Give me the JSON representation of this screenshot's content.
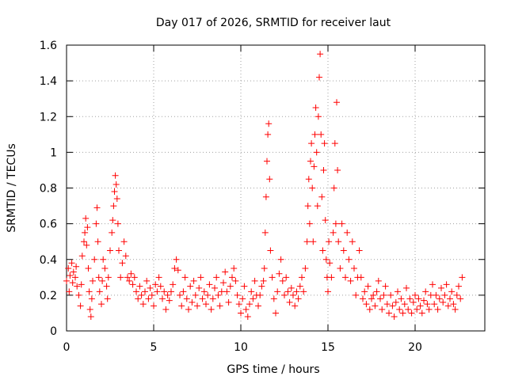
{
  "chart_data": {
    "type": "scatter",
    "title": "Day 017 of 2026, SRMTID for receiver laut",
    "xlabel": "GPS time / hours",
    "ylabel": "SRMTID / TECUs",
    "xlim": [
      0,
      24
    ],
    "ylim": [
      0,
      1.6
    ],
    "xticks": [
      0,
      5,
      10,
      15,
      20
    ],
    "xtick_labels": [
      "0",
      "5",
      "10",
      "15",
      "20"
    ],
    "yticks": [
      0,
      0.2,
      0.4,
      0.6,
      0.8,
      1,
      1.2,
      1.4,
      1.6
    ],
    "ytick_labels": [
      "0",
      "0.2",
      "0.4",
      "0.6",
      "0.8",
      "1",
      "1.2",
      "1.4",
      "1.6"
    ],
    "grid": true,
    "marker": "+",
    "color": "#ff0000",
    "series": [
      {
        "name": "SRMTID",
        "points": [
          [
            0.0,
            0.28
          ],
          [
            0.1,
            0.35
          ],
          [
            0.15,
            0.22
          ],
          [
            0.2,
            0.31
          ],
          [
            0.3,
            0.38
          ],
          [
            0.35,
            0.27
          ],
          [
            0.4,
            0.33
          ],
          [
            0.5,
            0.3
          ],
          [
            0.55,
            0.36
          ],
          [
            0.6,
            0.25
          ],
          [
            0.7,
            0.2
          ],
          [
            0.8,
            0.14
          ],
          [
            0.85,
            0.26
          ],
          [
            0.9,
            0.42
          ],
          [
            1.0,
            0.5
          ],
          [
            1.05,
            0.55
          ],
          [
            1.1,
            0.63
          ],
          [
            1.15,
            0.48
          ],
          [
            1.2,
            0.58
          ],
          [
            1.25,
            0.35
          ],
          [
            1.3,
            0.22
          ],
          [
            1.35,
            0.12
          ],
          [
            1.4,
            0.08
          ],
          [
            1.45,
            0.18
          ],
          [
            1.5,
            0.28
          ],
          [
            1.6,
            0.4
          ],
          [
            1.7,
            0.6
          ],
          [
            1.75,
            0.69
          ],
          [
            1.8,
            0.5
          ],
          [
            1.85,
            0.3
          ],
          [
            1.9,
            0.22
          ],
          [
            2.0,
            0.15
          ],
          [
            2.05,
            0.28
          ],
          [
            2.1,
            0.4
          ],
          [
            2.2,
            0.35
          ],
          [
            2.3,
            0.25
          ],
          [
            2.35,
            0.18
          ],
          [
            2.4,
            0.3
          ],
          [
            2.5,
            0.45
          ],
          [
            2.6,
            0.55
          ],
          [
            2.65,
            0.62
          ],
          [
            2.7,
            0.7
          ],
          [
            2.75,
            0.78
          ],
          [
            2.8,
            0.87
          ],
          [
            2.85,
            0.82
          ],
          [
            2.9,
            0.74
          ],
          [
            2.95,
            0.6
          ],
          [
            3.0,
            0.45
          ],
          [
            3.1,
            0.3
          ],
          [
            3.2,
            0.38
          ],
          [
            3.3,
            0.5
          ],
          [
            3.4,
            0.42
          ],
          [
            3.5,
            0.3
          ],
          [
            3.6,
            0.28
          ],
          [
            3.7,
            0.32
          ],
          [
            3.8,
            0.26
          ],
          [
            3.9,
            0.3
          ],
          [
            4.0,
            0.22
          ],
          [
            4.1,
            0.18
          ],
          [
            4.2,
            0.25
          ],
          [
            4.3,
            0.2
          ],
          [
            4.4,
            0.15
          ],
          [
            4.5,
            0.22
          ],
          [
            4.6,
            0.28
          ],
          [
            4.7,
            0.18
          ],
          [
            4.8,
            0.24
          ],
          [
            4.9,
            0.2
          ],
          [
            5.0,
            0.14
          ],
          [
            5.1,
            0.26
          ],
          [
            5.2,
            0.22
          ],
          [
            5.3,
            0.3
          ],
          [
            5.4,
            0.25
          ],
          [
            5.5,
            0.18
          ],
          [
            5.6,
            0.22
          ],
          [
            5.7,
            0.12
          ],
          [
            5.8,
            0.2
          ],
          [
            5.9,
            0.17
          ],
          [
            6.0,
            0.22
          ],
          [
            6.1,
            0.26
          ],
          [
            6.2,
            0.35
          ],
          [
            6.3,
            0.4
          ],
          [
            6.4,
            0.34
          ],
          [
            6.5,
            0.2
          ],
          [
            6.6,
            0.14
          ],
          [
            6.7,
            0.22
          ],
          [
            6.8,
            0.3
          ],
          [
            6.9,
            0.18
          ],
          [
            7.0,
            0.12
          ],
          [
            7.1,
            0.25
          ],
          [
            7.2,
            0.16
          ],
          [
            7.3,
            0.28
          ],
          [
            7.4,
            0.2
          ],
          [
            7.5,
            0.14
          ],
          [
            7.6,
            0.24
          ],
          [
            7.7,
            0.3
          ],
          [
            7.8,
            0.18
          ],
          [
            7.9,
            0.22
          ],
          [
            8.0,
            0.15
          ],
          [
            8.1,
            0.2
          ],
          [
            8.2,
            0.26
          ],
          [
            8.3,
            0.12
          ],
          [
            8.4,
            0.18
          ],
          [
            8.5,
            0.24
          ],
          [
            8.6,
            0.3
          ],
          [
            8.7,
            0.2
          ],
          [
            8.8,
            0.14
          ],
          [
            8.9,
            0.22
          ],
          [
            9.0,
            0.27
          ],
          [
            9.1,
            0.33
          ],
          [
            9.2,
            0.22
          ],
          [
            9.3,
            0.16
          ],
          [
            9.4,
            0.25
          ],
          [
            9.5,
            0.3
          ],
          [
            9.6,
            0.35
          ],
          [
            9.7,
            0.28
          ],
          [
            9.8,
            0.2
          ],
          [
            9.9,
            0.15
          ],
          [
            10.0,
            0.1
          ],
          [
            10.1,
            0.18
          ],
          [
            10.2,
            0.25
          ],
          [
            10.3,
            0.12
          ],
          [
            10.4,
            0.08
          ],
          [
            10.5,
            0.15
          ],
          [
            10.6,
            0.22
          ],
          [
            10.7,
            0.18
          ],
          [
            10.8,
            0.28
          ],
          [
            10.9,
            0.2
          ],
          [
            11.0,
            0.14
          ],
          [
            11.1,
            0.2
          ],
          [
            11.2,
            0.25
          ],
          [
            11.3,
            0.28
          ],
          [
            11.35,
            0.35
          ],
          [
            11.4,
            0.55
          ],
          [
            11.45,
            0.75
          ],
          [
            11.5,
            0.95
          ],
          [
            11.55,
            1.1
          ],
          [
            11.6,
            1.16
          ],
          [
            11.65,
            0.85
          ],
          [
            11.7,
            0.45
          ],
          [
            11.8,
            0.3
          ],
          [
            11.9,
            0.18
          ],
          [
            12.0,
            0.1
          ],
          [
            12.1,
            0.22
          ],
          [
            12.2,
            0.32
          ],
          [
            12.3,
            0.4
          ],
          [
            12.4,
            0.28
          ],
          [
            12.5,
            0.2
          ],
          [
            12.6,
            0.3
          ],
          [
            12.7,
            0.22
          ],
          [
            12.8,
            0.16
          ],
          [
            12.9,
            0.24
          ],
          [
            13.0,
            0.2
          ],
          [
            13.1,
            0.14
          ],
          [
            13.2,
            0.22
          ],
          [
            13.3,
            0.18
          ],
          [
            13.4,
            0.25
          ],
          [
            13.5,
            0.3
          ],
          [
            13.6,
            0.22
          ],
          [
            13.7,
            0.35
          ],
          [
            13.8,
            0.5
          ],
          [
            13.85,
            0.7
          ],
          [
            13.9,
            0.85
          ],
          [
            13.95,
            0.6
          ],
          [
            14.0,
            0.95
          ],
          [
            14.05,
            1.05
          ],
          [
            14.1,
            0.8
          ],
          [
            14.15,
            0.5
          ],
          [
            14.2,
            0.92
          ],
          [
            14.25,
            1.1
          ],
          [
            14.3,
            1.25
          ],
          [
            14.35,
            1.0
          ],
          [
            14.4,
            0.7
          ],
          [
            14.45,
            1.2
          ],
          [
            14.5,
            1.42
          ],
          [
            14.55,
            1.55
          ],
          [
            14.6,
            1.1
          ],
          [
            14.65,
            0.75
          ],
          [
            14.7,
            0.45
          ],
          [
            14.75,
            0.9
          ],
          [
            14.8,
            1.05
          ],
          [
            14.85,
            0.62
          ],
          [
            14.9,
            0.4
          ],
          [
            14.95,
            0.3
          ],
          [
            15.0,
            0.22
          ],
          [
            15.05,
            0.5
          ],
          [
            15.1,
            0.38
          ],
          [
            15.2,
            0.3
          ],
          [
            15.3,
            0.55
          ],
          [
            15.35,
            0.8
          ],
          [
            15.4,
            1.05
          ],
          [
            15.45,
            0.6
          ],
          [
            15.5,
            1.28
          ],
          [
            15.55,
            0.9
          ],
          [
            15.6,
            0.5
          ],
          [
            15.7,
            0.35
          ],
          [
            15.8,
            0.6
          ],
          [
            15.9,
            0.45
          ],
          [
            16.0,
            0.3
          ],
          [
            16.1,
            0.55
          ],
          [
            16.2,
            0.4
          ],
          [
            16.3,
            0.28
          ],
          [
            16.4,
            0.5
          ],
          [
            16.5,
            0.35
          ],
          [
            16.6,
            0.2
          ],
          [
            16.7,
            0.3
          ],
          [
            16.8,
            0.45
          ],
          [
            16.9,
            0.3
          ],
          [
            17.0,
            0.18
          ],
          [
            17.1,
            0.22
          ],
          [
            17.2,
            0.15
          ],
          [
            17.3,
            0.25
          ],
          [
            17.4,
            0.12
          ],
          [
            17.5,
            0.18
          ],
          [
            17.6,
            0.2
          ],
          [
            17.7,
            0.14
          ],
          [
            17.8,
            0.22
          ],
          [
            17.9,
            0.28
          ],
          [
            18.0,
            0.18
          ],
          [
            18.1,
            0.12
          ],
          [
            18.2,
            0.2
          ],
          [
            18.3,
            0.25
          ],
          [
            18.4,
            0.15
          ],
          [
            18.5,
            0.1
          ],
          [
            18.6,
            0.2
          ],
          [
            18.7,
            0.14
          ],
          [
            18.8,
            0.08
          ],
          [
            18.9,
            0.16
          ],
          [
            19.0,
            0.22
          ],
          [
            19.1,
            0.12
          ],
          [
            19.2,
            0.18
          ],
          [
            19.3,
            0.1
          ],
          [
            19.4,
            0.15
          ],
          [
            19.5,
            0.24
          ],
          [
            19.6,
            0.12
          ],
          [
            19.7,
            0.18
          ],
          [
            19.8,
            0.1
          ],
          [
            19.9,
            0.16
          ],
          [
            20.0,
            0.2
          ],
          [
            20.1,
            0.12
          ],
          [
            20.2,
            0.18
          ],
          [
            20.3,
            0.14
          ],
          [
            20.4,
            0.1
          ],
          [
            20.5,
            0.17
          ],
          [
            20.6,
            0.22
          ],
          [
            20.7,
            0.15
          ],
          [
            20.8,
            0.12
          ],
          [
            20.9,
            0.2
          ],
          [
            21.0,
            0.26
          ],
          [
            21.1,
            0.15
          ],
          [
            21.2,
            0.2
          ],
          [
            21.3,
            0.12
          ],
          [
            21.4,
            0.18
          ],
          [
            21.5,
            0.24
          ],
          [
            21.6,
            0.16
          ],
          [
            21.7,
            0.2
          ],
          [
            21.8,
            0.26
          ],
          [
            21.9,
            0.14
          ],
          [
            22.0,
            0.18
          ],
          [
            22.1,
            0.22
          ],
          [
            22.2,
            0.15
          ],
          [
            22.3,
            0.12
          ],
          [
            22.4,
            0.2
          ],
          [
            22.5,
            0.25
          ],
          [
            22.6,
            0.18
          ],
          [
            22.7,
            0.3
          ]
        ]
      }
    ]
  }
}
